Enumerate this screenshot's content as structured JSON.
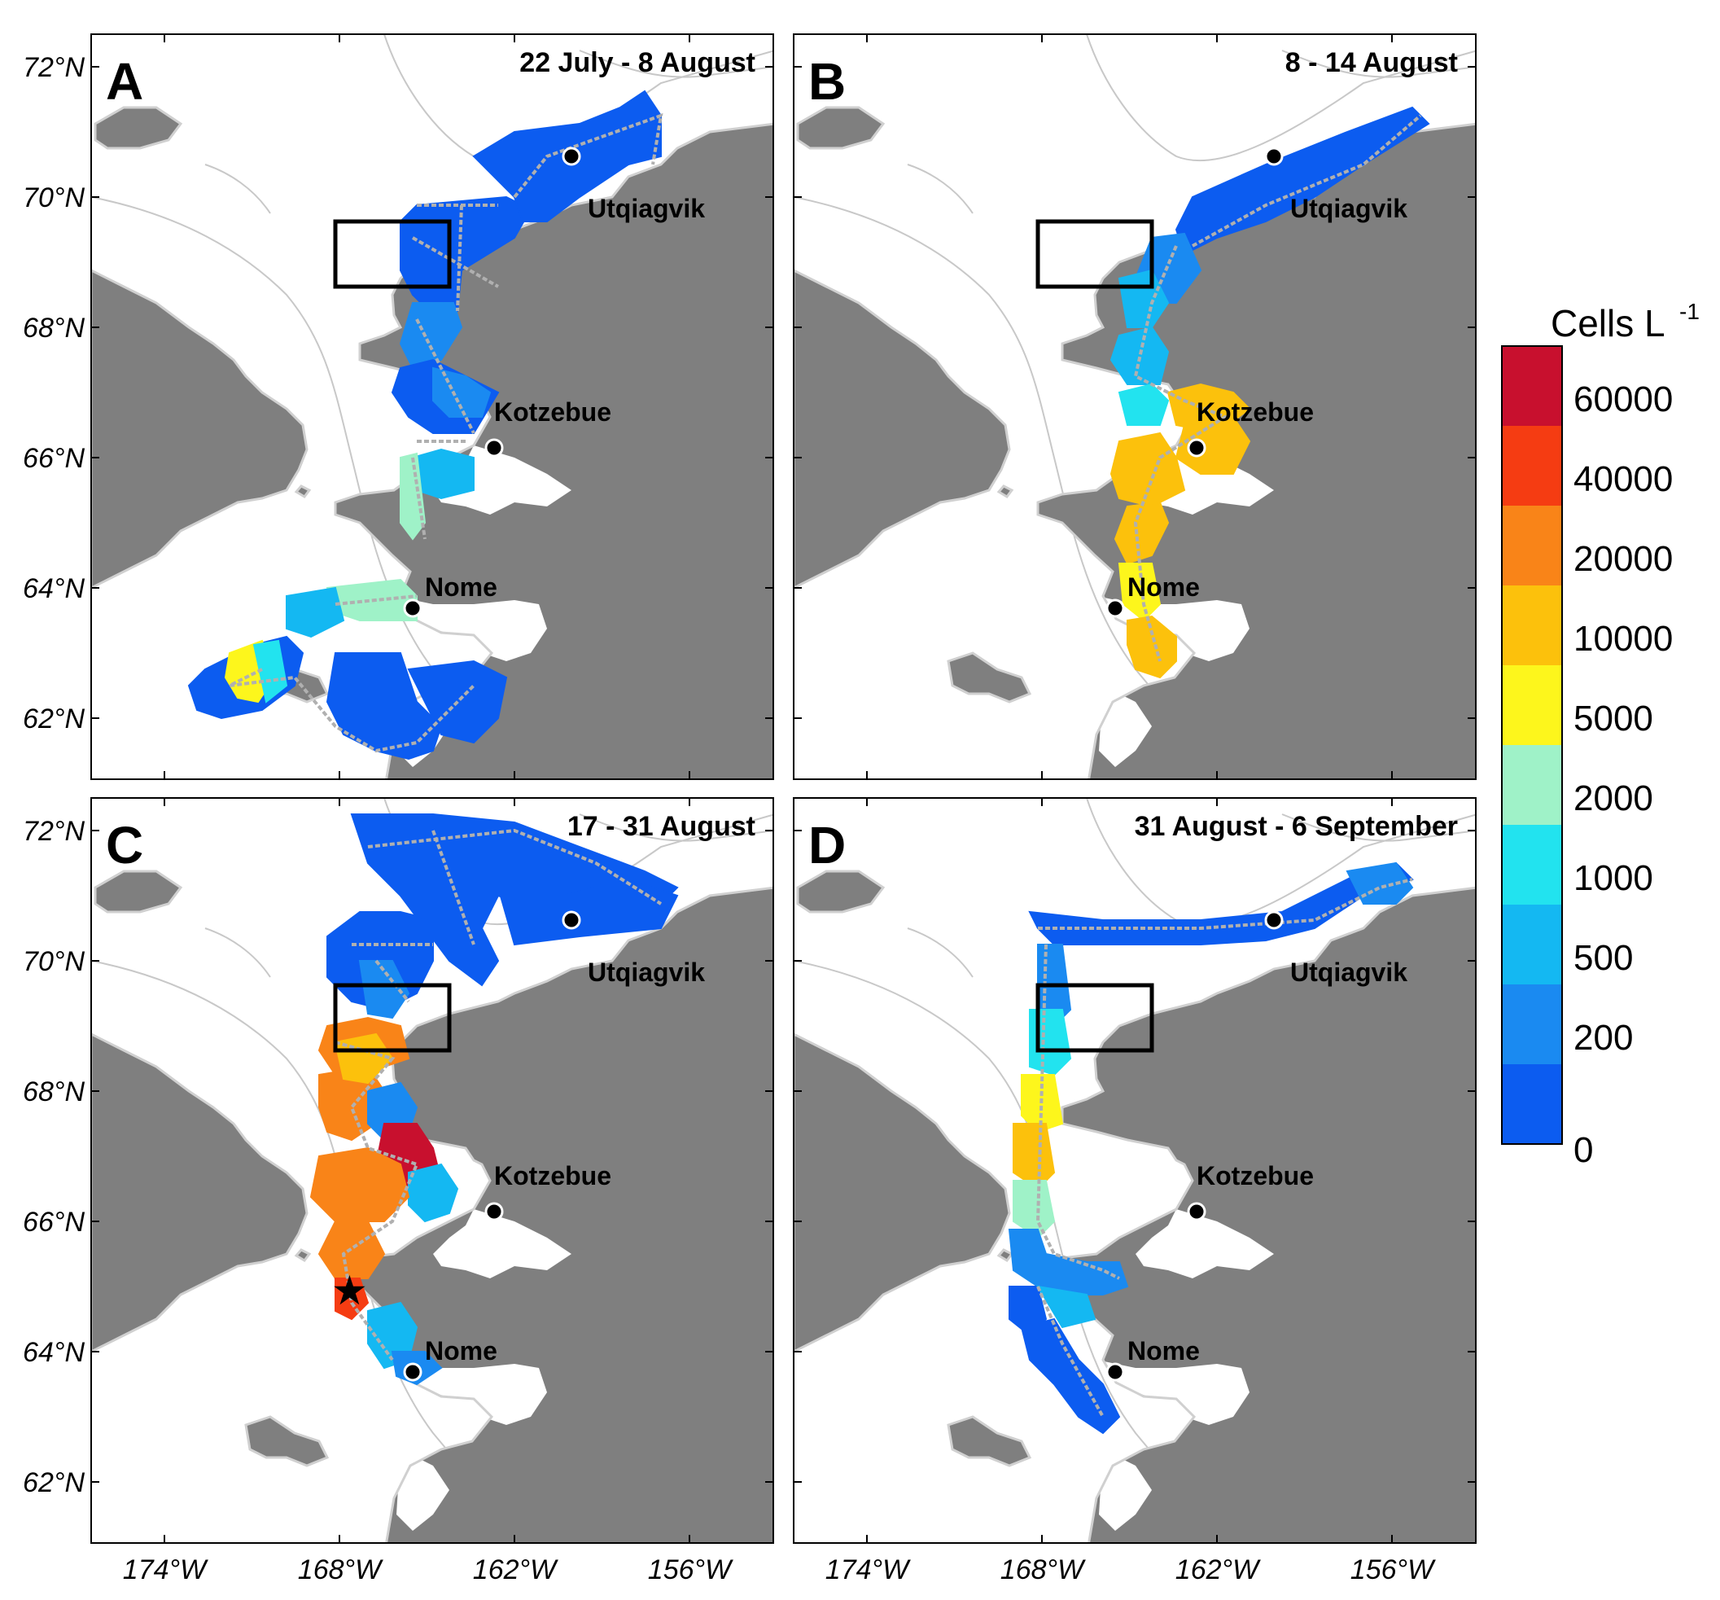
{
  "figure": {
    "lat_ticks": [
      "72°N",
      "70°N",
      "68°N",
      "66°N",
      "64°N",
      "62°N"
    ],
    "lon_ticks": [
      "174°W",
      "168°W",
      "162°W",
      "156°W"
    ],
    "cities": [
      "Utqiagvik",
      "Kotzebue",
      "Nome"
    ],
    "panels": [
      {
        "letter": "A",
        "date": "22 July - 8 August",
        "star": false
      },
      {
        "letter": "B",
        "date": "8 - 14 August",
        "star": false
      },
      {
        "letter": "C",
        "date": "17 - 31 August",
        "star": true
      },
      {
        "letter": "D",
        "date": "31 August - 6 September",
        "star": false
      }
    ],
    "colorbar": {
      "title": "Cells L",
      "title_superscript": "-1",
      "labels": [
        "60000",
        "40000",
        "20000",
        "10000",
        "5000",
        "2000",
        "1000",
        "500",
        "200",
        "0"
      ],
      "colors": [
        "#c8102e",
        "#f53c12",
        "#f98418",
        "#fcc10c",
        "#fdf61c",
        "#9ff2c8",
        "#22e3ef",
        "#14b8f2",
        "#1a8af1",
        "#0c5cf0"
      ]
    },
    "map_colors": {
      "land": "#7f7f7f",
      "water": "#ffffff",
      "isobath": "#c8c8c8",
      "track": "#b0b0b0",
      "box": "#000000"
    }
  }
}
